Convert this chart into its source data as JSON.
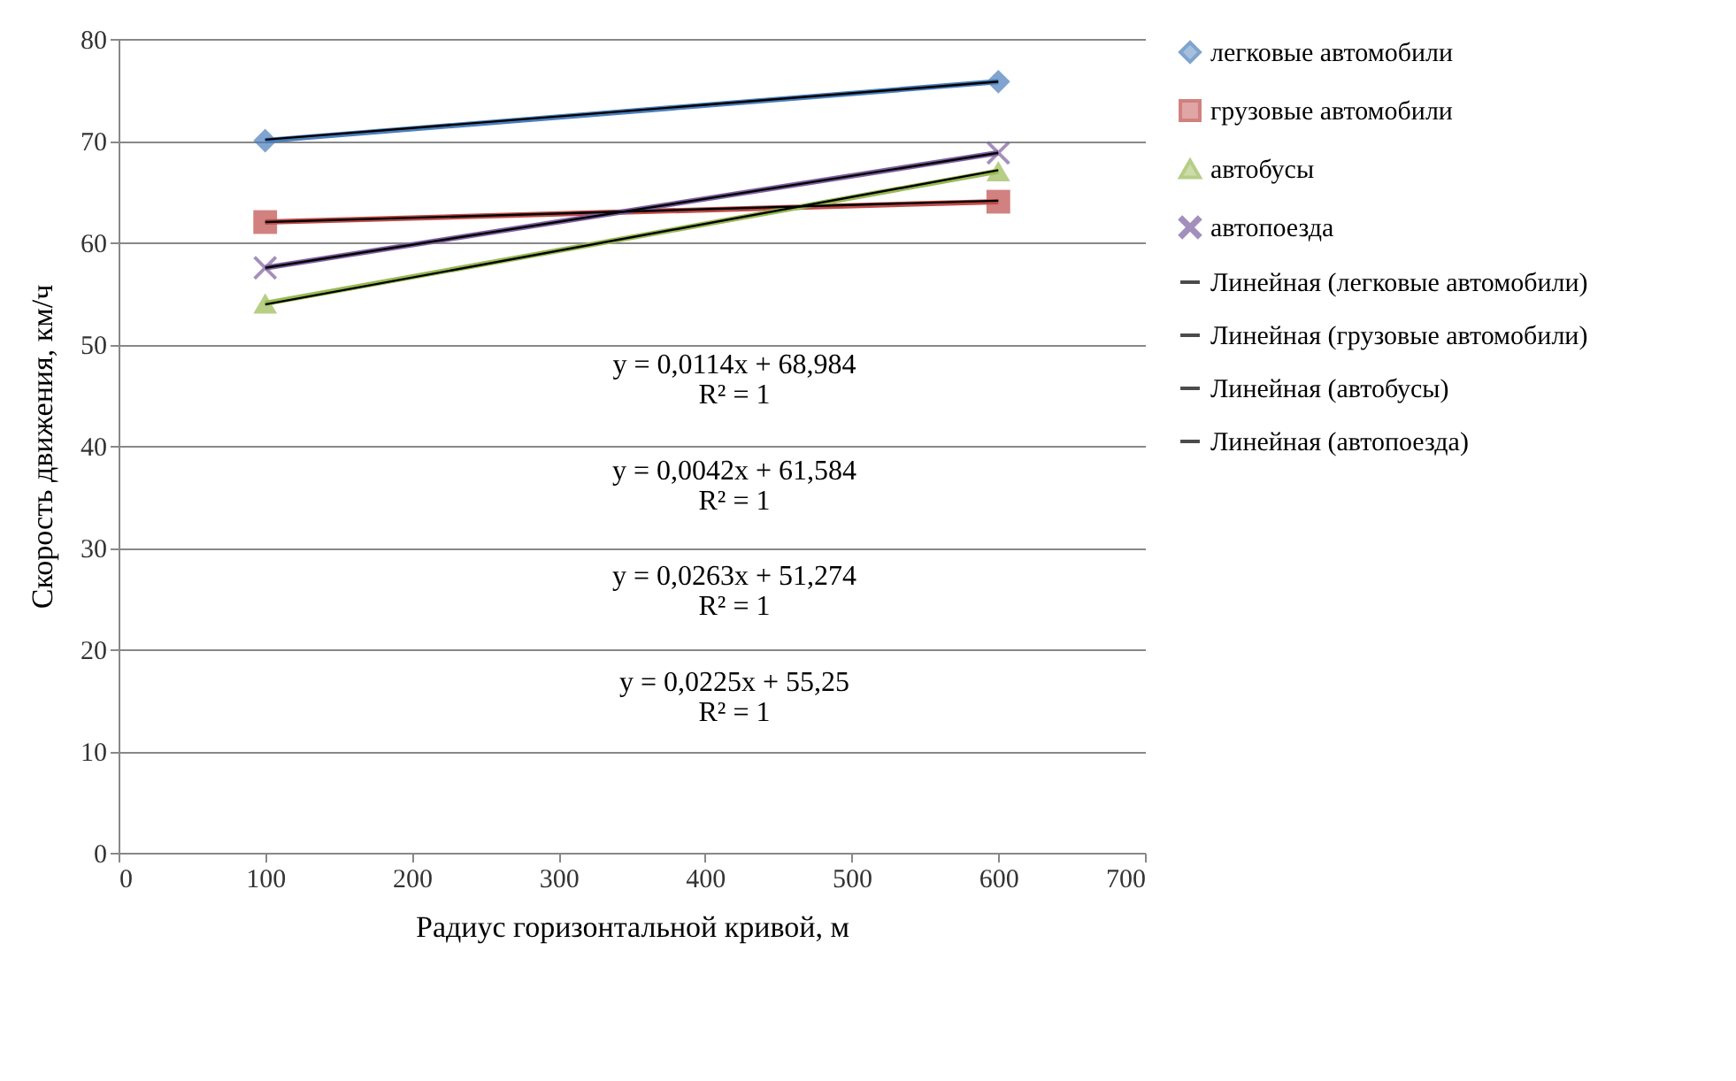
{
  "chart_data": {
    "type": "line",
    "xlabel": "Радиус горизонтальной кривой, м",
    "ylabel": "Скорость движения, км/ч",
    "x": [
      100,
      600
    ],
    "xlim": [
      0,
      700
    ],
    "xticks": [
      0,
      100,
      200,
      300,
      400,
      500,
      600,
      700
    ],
    "ylim": [
      0,
      80
    ],
    "yticks": [
      0,
      10,
      20,
      30,
      40,
      50,
      60,
      70,
      80
    ],
    "grid": "y",
    "legend": "right",
    "series": [
      {
        "name": "легковые автомобили",
        "color": "#4a7ebb",
        "marker": "diamond",
        "values": [
          70,
          75.8
        ]
      },
      {
        "name": "грузовые автомобили",
        "color": "#be4b48",
        "marker": "square",
        "values": [
          62,
          64
        ]
      },
      {
        "name": "автобусы",
        "color": "#98b954",
        "marker": "triangle",
        "values": [
          54,
          67
        ]
      },
      {
        "name": "автопоезда",
        "color": "#7d60a0",
        "marker": "cross",
        "values": [
          57.5,
          68.8
        ]
      },
      {
        "name": "Линейная (легковые автомобили)",
        "type": "line",
        "color": "#000000",
        "marker": "none",
        "values": [
          70.1,
          75.8
        ]
      },
      {
        "name": "Линейная (грузовые автомобили)",
        "type": "line",
        "color": "#000000",
        "marker": "none",
        "values": [
          62.0,
          64.1
        ]
      },
      {
        "name": "Линейная (автобусы)",
        "type": "line",
        "color": "#000000",
        "marker": "none",
        "values": [
          53.9,
          67.1
        ]
      },
      {
        "name": "Линейная (автопоезда)",
        "type": "line",
        "color": "#000000",
        "marker": "none",
        "values": [
          57.5,
          68.8
        ]
      }
    ],
    "annotations": [
      "y = 0,0114x + 68,984",
      "R² = 1",
      "y = 0,0042x + 61,584",
      "R² = 1",
      "y = 0,0263x + 51,274",
      "R² = 1",
      "y = 0,0225x + 55,25",
      "R² = 1"
    ]
  }
}
